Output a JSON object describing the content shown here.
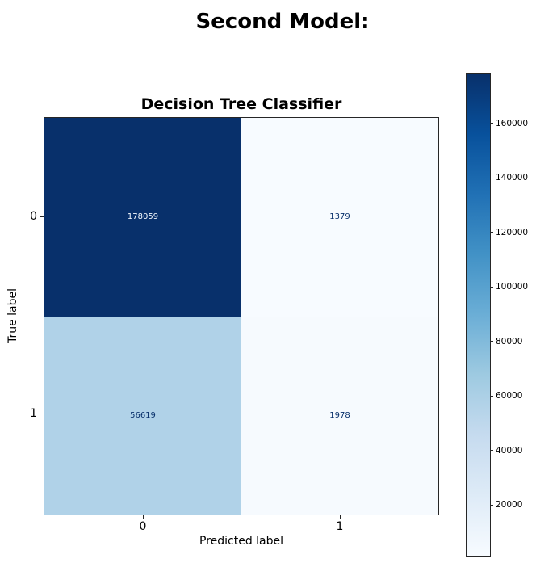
{
  "figure": {
    "title": "Second Model:"
  },
  "chart_data": {
    "type": "heatmap",
    "subtype": "confusion_matrix",
    "title": "Decision Tree Classifier",
    "xlabel": "Predicted label",
    "ylabel": "True label",
    "x_tick_labels": [
      "0",
      "1"
    ],
    "y_tick_labels": [
      "0",
      "1"
    ],
    "matrix": [
      [
        178059,
        1379
      ],
      [
        56619,
        1978
      ]
    ],
    "vmin": 1379,
    "vmax": 178059,
    "colormap": "Blues",
    "grid": false,
    "colorbar": {
      "position": "right",
      "tick_values": [
        160000,
        140000,
        120000,
        100000,
        80000,
        60000,
        40000,
        20000
      ],
      "tick_labels": [
        "160000",
        "140000",
        "120000",
        "100000",
        "80000",
        "60000",
        "40000",
        "20000"
      ]
    },
    "cell_styles": [
      "background:#08306b;color:#f7fbff",
      "background:#f7fbff;color:#08306b",
      "background:#b0d2e8;color:#08306b",
      "background:#f6fafe;color:#08306b"
    ],
    "colors": {
      "cmap_max": "#08306b",
      "cmap_min": "#f7fbff",
      "cell_0_0": "#08306b",
      "cell_0_1": "#f7fbff",
      "cell_1_0": "#b0d2e8",
      "cell_1_1": "#f6fafe",
      "dark_cell_text": "#f7fbff",
      "light_cell_text": "#08306b",
      "axis": "#262626"
    }
  }
}
